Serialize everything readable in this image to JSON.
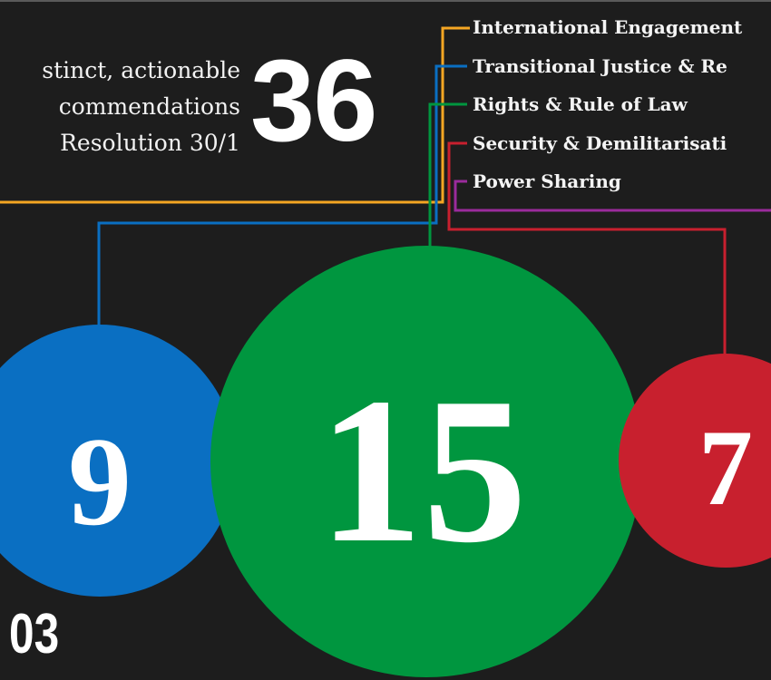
{
  "intro": {
    "lines": [
      "stinct, actionable",
      "commendations",
      "Resolution 30/1"
    ],
    "total": "36"
  },
  "legend": {
    "items": [
      {
        "label": "International Engagement",
        "color": "#f5a623"
      },
      {
        "label": "Transitional Justice & Re",
        "color": "#0a6fc2"
      },
      {
        "label": "Rights & Rule of Law",
        "color": "#00963f"
      },
      {
        "label": "Security & Demilitarisati",
        "color": "#c8202e"
      },
      {
        "label": "Power Sharing",
        "color": "#9b2b9c"
      }
    ]
  },
  "bubbles": [
    {
      "category": "Transitional Justice & Re",
      "value": "9",
      "color": "#0a6fc2"
    },
    {
      "category": "Rights & Rule of Law",
      "value": "15",
      "color": "#00963f"
    },
    {
      "category": "Security & Demilitarisati",
      "value": "7",
      "color": "#c8202e"
    }
  ],
  "page_number": "03"
}
